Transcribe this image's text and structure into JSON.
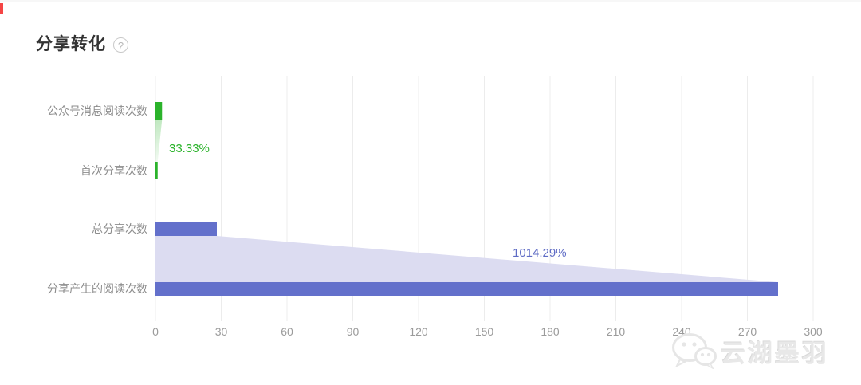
{
  "page": {
    "title": "分享转化",
    "help_icon_glyph": "?",
    "marker_color": "#f54545"
  },
  "chart_data": {
    "type": "bar",
    "orientation": "horizontal",
    "title": "分享转化",
    "categories": [
      "公众号消息阅读次数",
      "首次分享次数",
      "总分享次数",
      "分享产生的阅读次数"
    ],
    "values": [
      3,
      1,
      28,
      284
    ],
    "conversions": [
      {
        "from": "公众号消息阅读次数",
        "to": "首次分享次数",
        "rate": "33.33%"
      },
      {
        "from": "总分享次数",
        "to": "分享产生的阅读次数",
        "rate": "1014.29%"
      }
    ],
    "x_ticks": [
      0,
      30,
      60,
      90,
      120,
      150,
      180,
      210,
      240,
      270,
      300
    ],
    "xlim": [
      0,
      300
    ],
    "grid": true,
    "legend": "none",
    "colors": {
      "green_bar": "#2bb32b",
      "green_area": "#d9f1d9",
      "green_text": "#2bb32b",
      "purple_bar": "#6370cb",
      "purple_area": "#dcdcf1",
      "purple_text": "#5f6cc5",
      "gridline": "#ececec",
      "category_label": "#8c8c8c",
      "tick_label": "#9b9b9b"
    }
  },
  "watermark": {
    "text": "云湖墨羽",
    "icon": "wechat-logo"
  }
}
